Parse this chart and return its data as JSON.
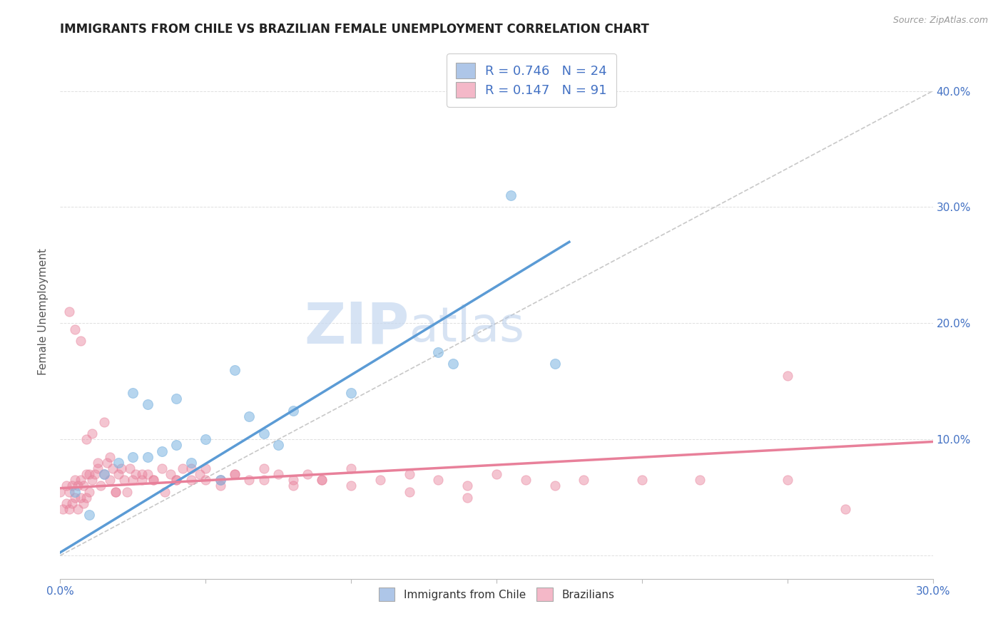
{
  "title": "IMMIGRANTS FROM CHILE VS BRAZILIAN FEMALE UNEMPLOYMENT CORRELATION CHART",
  "source_text": "Source: ZipAtlas.com",
  "ylabel": "Female Unemployment",
  "xlim": [
    0.0,
    0.3
  ],
  "ylim": [
    -0.02,
    0.44
  ],
  "xticks": [
    0.0,
    0.05,
    0.1,
    0.15,
    0.2,
    0.25,
    0.3
  ],
  "yticks_right": [
    0.0,
    0.1,
    0.2,
    0.3,
    0.4
  ],
  "ytick_right_labels": [
    "",
    "10.0%",
    "20.0%",
    "30.0%",
    "40.0%"
  ],
  "watermark_zip": "ZIP",
  "watermark_atlas": "atlas",
  "blue_scatter_x": [
    0.005,
    0.01,
    0.015,
    0.02,
    0.025,
    0.03,
    0.035,
    0.04,
    0.045,
    0.05,
    0.055,
    0.065,
    0.07,
    0.075,
    0.08,
    0.1,
    0.13,
    0.135,
    0.155,
    0.17,
    0.025,
    0.03,
    0.04,
    0.06
  ],
  "blue_scatter_y": [
    0.055,
    0.035,
    0.07,
    0.08,
    0.085,
    0.085,
    0.09,
    0.095,
    0.08,
    0.1,
    0.065,
    0.12,
    0.105,
    0.095,
    0.125,
    0.14,
    0.175,
    0.165,
    0.31,
    0.165,
    0.14,
    0.13,
    0.135,
    0.16
  ],
  "pink_scatter_x": [
    0.0,
    0.001,
    0.002,
    0.002,
    0.003,
    0.003,
    0.004,
    0.004,
    0.005,
    0.005,
    0.006,
    0.006,
    0.007,
    0.007,
    0.008,
    0.008,
    0.009,
    0.009,
    0.01,
    0.01,
    0.011,
    0.012,
    0.013,
    0.014,
    0.015,
    0.016,
    0.017,
    0.018,
    0.019,
    0.02,
    0.022,
    0.024,
    0.026,
    0.028,
    0.03,
    0.032,
    0.035,
    0.038,
    0.04,
    0.042,
    0.045,
    0.048,
    0.05,
    0.055,
    0.06,
    0.065,
    0.07,
    0.075,
    0.08,
    0.085,
    0.09,
    0.1,
    0.11,
    0.12,
    0.13,
    0.14,
    0.15,
    0.16,
    0.17,
    0.18,
    0.2,
    0.22,
    0.25,
    0.003,
    0.005,
    0.007,
    0.009,
    0.011,
    0.013,
    0.015,
    0.017,
    0.019,
    0.021,
    0.023,
    0.025,
    0.028,
    0.032,
    0.036,
    0.04,
    0.045,
    0.05,
    0.055,
    0.06,
    0.07,
    0.08,
    0.09,
    0.1,
    0.12,
    0.14,
    0.25,
    0.27
  ],
  "pink_scatter_y": [
    0.055,
    0.04,
    0.045,
    0.06,
    0.04,
    0.055,
    0.045,
    0.06,
    0.05,
    0.065,
    0.04,
    0.06,
    0.05,
    0.065,
    0.045,
    0.06,
    0.07,
    0.05,
    0.055,
    0.07,
    0.065,
    0.07,
    0.075,
    0.06,
    0.07,
    0.08,
    0.065,
    0.075,
    0.055,
    0.07,
    0.065,
    0.075,
    0.07,
    0.065,
    0.07,
    0.065,
    0.075,
    0.07,
    0.065,
    0.075,
    0.065,
    0.07,
    0.075,
    0.065,
    0.07,
    0.065,
    0.075,
    0.07,
    0.065,
    0.07,
    0.065,
    0.075,
    0.065,
    0.07,
    0.065,
    0.06,
    0.07,
    0.065,
    0.06,
    0.065,
    0.065,
    0.065,
    0.065,
    0.21,
    0.195,
    0.185,
    0.1,
    0.105,
    0.08,
    0.115,
    0.085,
    0.055,
    0.075,
    0.055,
    0.065,
    0.07,
    0.065,
    0.055,
    0.065,
    0.075,
    0.065,
    0.06,
    0.07,
    0.065,
    0.06,
    0.065,
    0.06,
    0.055,
    0.05,
    0.155,
    0.04
  ],
  "blue_line_x": [
    -0.005,
    0.175
  ],
  "blue_line_y": [
    -0.005,
    0.27
  ],
  "pink_line_x": [
    0.0,
    0.3
  ],
  "pink_line_y": [
    0.058,
    0.098
  ],
  "ref_line_x": [
    0.0,
    0.3
  ],
  "ref_line_y": [
    0.0,
    0.4
  ],
  "blue_color": "#5b9bd5",
  "pink_color": "#e8809a",
  "blue_scatter_color": "#7ab3e0",
  "pink_scatter_color": "#e8809a",
  "blue_fill": "#aec6e8",
  "pink_fill": "#f4b8c8",
  "ref_line_color": "#c8c8c8",
  "grid_color": "#e0e0e0",
  "background_color": "#ffffff",
  "title_fontsize": 12,
  "axis_label_fontsize": 11,
  "tick_fontsize": 11,
  "legend_fontsize": 13,
  "legend_entry_1": "R = 0.746   N = 24",
  "legend_entry_2": "R = 0.147   N = 91",
  "bottom_legend_1": "Immigrants from Chile",
  "bottom_legend_2": "Brazilians"
}
